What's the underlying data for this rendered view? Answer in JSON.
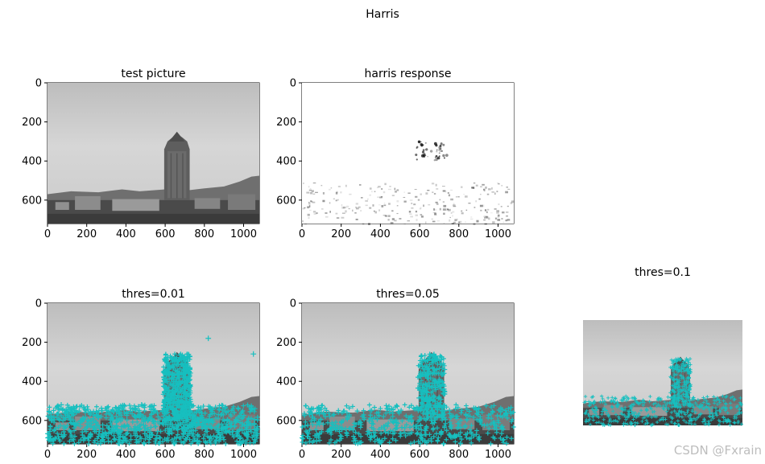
{
  "figure": {
    "suptitle": "Harris",
    "watermark": "CSDN @Fxrain"
  },
  "chart_data": [
    {
      "type": "image",
      "title": "test picture",
      "xticks": [
        "0",
        "200",
        "400",
        "600",
        "800",
        "1000"
      ],
      "yticks": [
        "0",
        "200",
        "400",
        "600"
      ],
      "xlim": [
        0,
        1080
      ],
      "ylim": [
        720,
        0
      ]
    },
    {
      "type": "image",
      "title": "harris response",
      "xticks": [
        "0",
        "200",
        "400",
        "600",
        "800",
        "1000"
      ],
      "yticks": [
        "0",
        "200",
        "400",
        "600"
      ],
      "xlim": [
        0,
        1080
      ],
      "ylim": [
        720,
        0
      ]
    },
    {
      "type": "image",
      "title": "thres=0.01",
      "xticks": [
        "0",
        "200",
        "400",
        "600",
        "800",
        "1000"
      ],
      "yticks": [
        "0",
        "200",
        "400",
        "600"
      ],
      "xlim": [
        0,
        1080
      ],
      "ylim": [
        720,
        0
      ],
      "marker_color": "#17bfbf"
    },
    {
      "type": "image",
      "title": "thres=0.05",
      "xticks": [
        "0",
        "200",
        "400",
        "600",
        "800",
        "1000"
      ],
      "yticks": [
        "0",
        "200",
        "400",
        "600"
      ],
      "xlim": [
        0,
        1080
      ],
      "ylim": [
        720,
        0
      ],
      "marker_color": "#17bfbf"
    },
    {
      "type": "image",
      "title": "thres=0.1",
      "axis": "off",
      "marker_color": "#17bfbf"
    }
  ]
}
